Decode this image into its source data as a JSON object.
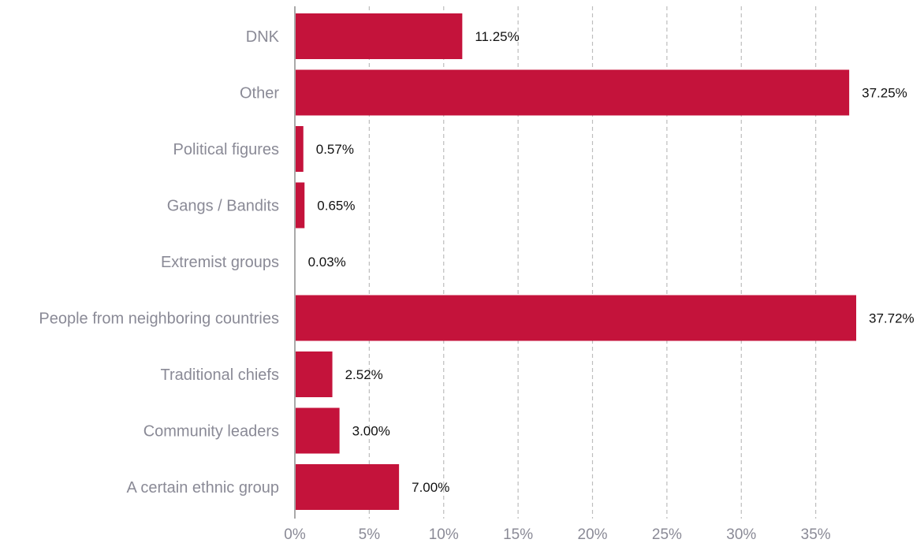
{
  "chart_data": {
    "type": "bar",
    "orientation": "horizontal",
    "categories": [
      "DNK",
      "Other",
      "Political figures",
      "Gangs / Bandits",
      "Extremist groups",
      "People from neighboring countries",
      "Traditional chiefs",
      "Community leaders",
      "A certain ethnic group"
    ],
    "values": [
      11.25,
      37.25,
      0.57,
      0.65,
      0.03,
      37.72,
      2.52,
      3.0,
      7.0
    ],
    "value_labels": [
      "11.25%",
      "37.25%",
      "0.57%",
      "0.65%",
      "0.03%",
      "37.72%",
      "2.52%",
      "3.00%",
      "7.00%"
    ],
    "x_ticks": [
      0,
      5,
      10,
      15,
      20,
      25,
      30,
      35
    ],
    "x_tick_labels": [
      "0%",
      "5%",
      "10%",
      "15%",
      "20%",
      "25%",
      "30%",
      "35%"
    ],
    "xlim": [
      0,
      37.72
    ],
    "grid": true,
    "legend": "none",
    "bar_color": "#c4133b",
    "title": "",
    "xlabel": "",
    "ylabel": ""
  }
}
